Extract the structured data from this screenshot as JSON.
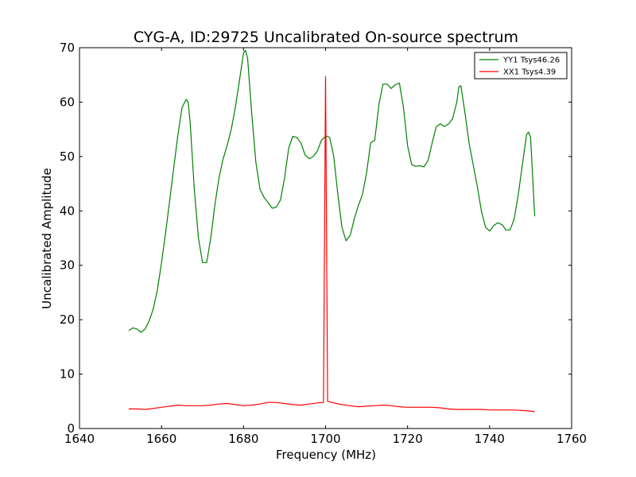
{
  "chart_data": {
    "type": "line",
    "title": "CYG-A, ID:29725 Uncalibrated On-source spectrum",
    "xlabel": "Frequency (MHz)",
    "ylabel": "Uncalibrated Amplitude",
    "xlim": [
      1640,
      1760
    ],
    "ylim": [
      0,
      70
    ],
    "xticks": [
      "1640",
      "1660",
      "1680",
      "1700",
      "1720",
      "1740",
      "1760"
    ],
    "yticks": [
      "0",
      "10",
      "20",
      "30",
      "40",
      "50",
      "60",
      "70"
    ],
    "grid": false,
    "legend_position": "top-right",
    "series": [
      {
        "name": "YY1 Tsys46.26",
        "color": "#008000",
        "x": [
          1652,
          1653,
          1654,
          1655,
          1656,
          1657,
          1658,
          1659,
          1660,
          1661,
          1662,
          1663,
          1664,
          1665,
          1666,
          1666.5,
          1667,
          1668,
          1669,
          1670,
          1671,
          1672,
          1673,
          1674,
          1675,
          1676,
          1677,
          1678,
          1679,
          1680,
          1680.5,
          1681,
          1682,
          1683,
          1684,
          1685,
          1686,
          1687,
          1688,
          1689,
          1690,
          1691,
          1692,
          1693,
          1694,
          1695,
          1696,
          1697,
          1698,
          1699,
          1700,
          1700.5,
          1701,
          1702,
          1703,
          1704,
          1705,
          1706,
          1707,
          1708,
          1709,
          1710,
          1711,
          1712,
          1713,
          1714,
          1715,
          1716,
          1717,
          1718,
          1719,
          1720,
          1721,
          1722,
          1723,
          1724,
          1725,
          1726,
          1727,
          1728,
          1729,
          1730,
          1731,
          1732,
          1732.5,
          1733,
          1734,
          1735,
          1736,
          1737,
          1738,
          1739,
          1740,
          1741,
          1742,
          1743,
          1744,
          1745,
          1746,
          1747,
          1748,
          1749,
          1749.5,
          1750,
          1751
        ],
        "values": [
          18,
          18.5,
          18.3,
          17.7,
          18.3,
          19.8,
          22,
          25.5,
          30.5,
          36,
          42,
          48,
          54,
          59,
          60.5,
          60,
          56,
          44,
          35,
          30.5,
          30.5,
          35,
          41,
          46,
          49.5,
          52,
          55,
          59,
          64,
          69,
          69.5,
          68,
          58,
          49,
          44,
          42.5,
          41.5,
          40.5,
          40.7,
          42,
          46,
          51.5,
          53.7,
          53.5,
          52.5,
          50.3,
          49.6,
          50,
          51,
          53,
          53.7,
          53.7,
          53.5,
          50,
          43,
          37,
          34.5,
          35.5,
          38.5,
          41,
          43,
          47,
          52.5,
          53,
          59.5,
          63.3,
          63.3,
          62.5,
          63.2,
          63.5,
          59,
          52,
          48.5,
          48.2,
          48.3,
          48.1,
          49.3,
          52.5,
          55.5,
          56,
          55.5,
          56,
          57,
          60,
          62.8,
          63,
          58,
          52.5,
          48.5,
          44.5,
          40,
          37,
          36.3,
          37.3,
          37.8,
          37.5,
          36.5,
          36.5,
          38.5,
          43,
          48.5,
          54,
          54.5,
          53.5,
          39
        ]
      },
      {
        "name": "XX1 Tsys4.39",
        "color": "#ff0000",
        "x": [
          1652,
          1654,
          1656,
          1658,
          1660,
          1662,
          1664,
          1666,
          1668,
          1670,
          1672,
          1674,
          1676,
          1678,
          1680,
          1682,
          1684,
          1686,
          1688,
          1690,
          1692,
          1694,
          1696,
          1698,
          1699.5,
          1700,
          1700.5,
          1702,
          1704,
          1706,
          1708,
          1710,
          1712,
          1714,
          1716,
          1718,
          1720,
          1722,
          1724,
          1726,
          1728,
          1730,
          1732,
          1734,
          1736,
          1738,
          1740,
          1742,
          1744,
          1746,
          1748,
          1750,
          1751
        ],
        "values": [
          3.6,
          3.6,
          3.5,
          3.7,
          3.9,
          4.1,
          4.3,
          4.2,
          4.2,
          4.2,
          4.3,
          4.5,
          4.6,
          4.4,
          4.2,
          4.3,
          4.5,
          4.8,
          4.8,
          4.6,
          4.4,
          4.3,
          4.5,
          4.7,
          4.8,
          64.7,
          5.0,
          4.7,
          4.4,
          4.2,
          4.0,
          4.1,
          4.2,
          4.3,
          4.2,
          4.0,
          3.9,
          3.9,
          3.9,
          3.9,
          3.8,
          3.6,
          3.5,
          3.5,
          3.5,
          3.5,
          3.4,
          3.4,
          3.4,
          3.4,
          3.3,
          3.2,
          3.1
        ]
      }
    ]
  }
}
